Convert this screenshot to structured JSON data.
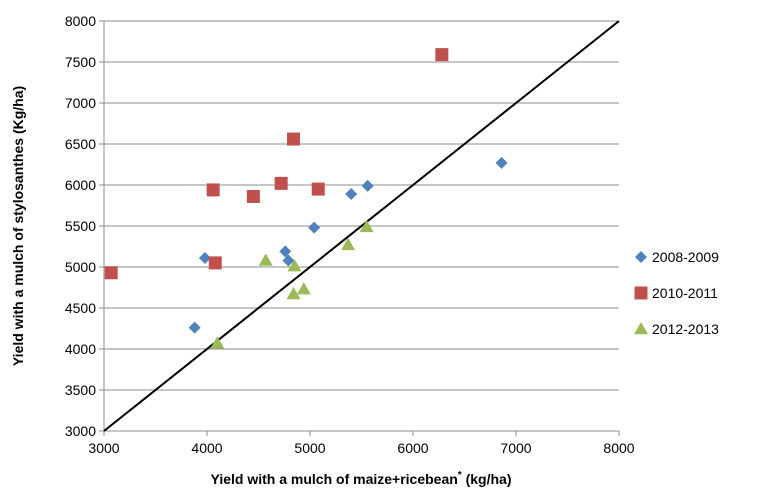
{
  "chart_data": {
    "type": "scatter",
    "title": "",
    "xlabel": "Yield with a mulch of maize+ricebean",
    "xlabel_superscript": "*",
    "xlabel_unit": " (kg/ha)",
    "ylabel": "Yield with a mulch of stylosanthes (Kg/ha)",
    "xlim": [
      3000,
      8000
    ],
    "ylim": [
      3000,
      8000
    ],
    "x_ticks": [
      "3000",
      "4000",
      "5000",
      "6000",
      "7000",
      "8000"
    ],
    "y_ticks": [
      "3000",
      "3500",
      "4000",
      "4500",
      "5000",
      "5500",
      "6000",
      "6500",
      "7000",
      "7500",
      "8000"
    ],
    "grid": "horizontal",
    "legend_position": "right",
    "reference_line": {
      "x": [
        3000,
        8000
      ],
      "y": [
        3000,
        8000
      ],
      "color": "#000000"
    },
    "series": [
      {
        "name": "2008-2009",
        "marker": "diamond",
        "color": "#4f81bd",
        "points": [
          {
            "x": 3880,
            "y": 4260
          },
          {
            "x": 3980,
            "y": 5110
          },
          {
            "x": 4760,
            "y": 5190
          },
          {
            "x": 4790,
            "y": 5080
          },
          {
            "x": 5040,
            "y": 5480
          },
          {
            "x": 5400,
            "y": 5890
          },
          {
            "x": 5560,
            "y": 5990
          },
          {
            "x": 6860,
            "y": 6270
          }
        ]
      },
      {
        "name": "2010-2011",
        "marker": "square",
        "color": "#c0504d",
        "points": [
          {
            "x": 3070,
            "y": 4930
          },
          {
            "x": 4060,
            "y": 5940
          },
          {
            "x": 4080,
            "y": 5050
          },
          {
            "x": 4450,
            "y": 5860
          },
          {
            "x": 4720,
            "y": 6020
          },
          {
            "x": 4840,
            "y": 6560
          },
          {
            "x": 5080,
            "y": 5950
          },
          {
            "x": 6280,
            "y": 7590
          }
        ]
      },
      {
        "name": "2012-2013",
        "marker": "triangle",
        "color": "#9bbb59",
        "points": [
          {
            "x": 4100,
            "y": 4070
          },
          {
            "x": 4570,
            "y": 5080
          },
          {
            "x": 4840,
            "y": 4670
          },
          {
            "x": 4850,
            "y": 5010
          },
          {
            "x": 4940,
            "y": 4730
          },
          {
            "x": 5370,
            "y": 5270
          },
          {
            "x": 5550,
            "y": 5490
          }
        ]
      }
    ]
  }
}
